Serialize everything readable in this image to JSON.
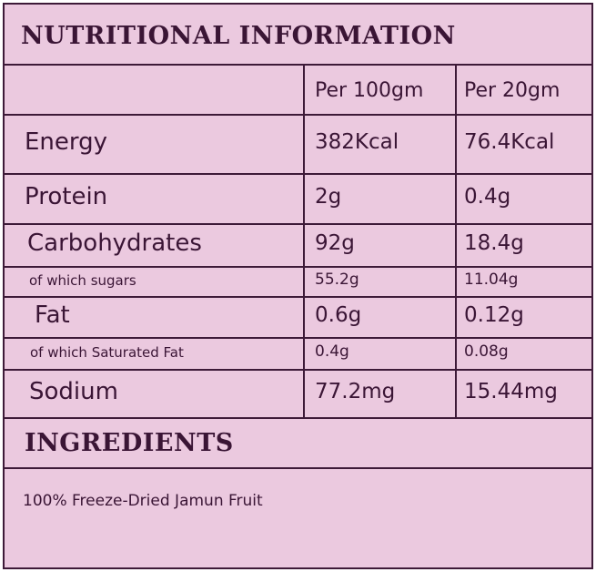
{
  "header": {
    "title": "NUTRITIONAL INFORMATION"
  },
  "table": {
    "columns": [
      "Per 100gm",
      "Per 20gm"
    ],
    "rows": [
      [
        "Energy",
        "382Kcal",
        "76.4Kcal"
      ],
      [
        "Protein",
        "2g",
        "0.4g"
      ],
      [
        "Carbohydrates",
        "92g",
        "18.4g"
      ],
      [
        "of which sugars",
        "55.2g",
        "11.04g"
      ],
      [
        "Fat",
        "0.6g",
        "0.12g"
      ],
      [
        "of which Saturated Fat",
        "0.4g",
        "0.08g"
      ],
      [
        "Sodium",
        "77.2mg",
        "15.44mg"
      ]
    ]
  },
  "ingredients": {
    "title": "INGREDIENTS",
    "text": "100% Freeze-Dried Jamun Fruit"
  }
}
